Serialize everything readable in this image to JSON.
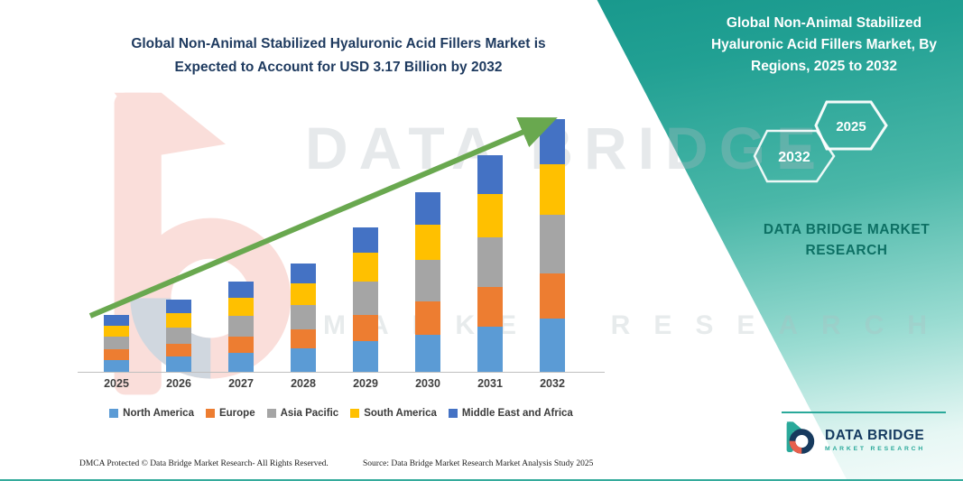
{
  "page": {
    "background": "#ffffff",
    "accent_teal": "#14968a",
    "arrow_green": "#69a84f",
    "navy": "#153a60"
  },
  "chart": {
    "title_line1": "Global Non-Animal Stabilized Hyaluronic Acid Fillers Market is",
    "title_line2": "Expected to Account for USD 3.17 Billion by 2032"
  },
  "chart_data": {
    "type": "bar",
    "stacked": true,
    "title": "Global Non-Animal Stabilized Hyaluronic Acid Fillers Market is Expected to Account for USD 3.17 Billion by 2032",
    "unit": "USD Billion",
    "categories": [
      "2025",
      "2026",
      "2027",
      "2028",
      "2029",
      "2030",
      "2031",
      "2032"
    ],
    "series": [
      {
        "name": "North America",
        "color": "#5B9BD5",
        "values": [
          0.15,
          0.19,
          0.24,
          0.29,
          0.38,
          0.47,
          0.57,
          0.67
        ]
      },
      {
        "name": "Europe",
        "color": "#ED7D31",
        "values": [
          0.13,
          0.16,
          0.2,
          0.24,
          0.33,
          0.41,
          0.49,
          0.57
        ]
      },
      {
        "name": "Asia Pacific",
        "color": "#A5A5A5",
        "values": [
          0.16,
          0.21,
          0.26,
          0.31,
          0.42,
          0.52,
          0.63,
          0.73
        ]
      },
      {
        "name": "South America",
        "color": "#FFC000",
        "values": [
          0.14,
          0.18,
          0.23,
          0.27,
          0.36,
          0.45,
          0.54,
          0.63
        ]
      },
      {
        "name": "Middle East and Africa",
        "color": "#4472C4",
        "values": [
          0.13,
          0.17,
          0.2,
          0.25,
          0.32,
          0.41,
          0.49,
          0.57
        ]
      }
    ],
    "totals": [
      0.71,
      0.91,
      1.13,
      1.36,
      1.81,
      2.26,
      2.72,
      3.17
    ],
    "ylim": [
      0,
      3.5
    ],
    "legend_position": "bottom",
    "annotation": "green upward trend arrow from 2025 bar to 2032 bar"
  },
  "right_panel": {
    "title": "Global Non-Animal Stabilized Hyaluronic Acid Fillers Market, By Regions, 2025 to 2032",
    "hexagons": [
      {
        "label": "2032"
      },
      {
        "label": "2025"
      }
    ],
    "brand_line1": "DATA BRIDGE MARKET",
    "brand_line2": "RESEARCH"
  },
  "watermark": {
    "brand": "DATA BRIDGE",
    "sub": "MARKET RESEARCH"
  },
  "logo": {
    "name": "DATA BRIDGE",
    "tagline": "MARKET RESEARCH"
  },
  "footer": {
    "dmca": "DMCA Protected © Data Bridge Market Research-  All Rights Reserved.",
    "source": "Source: Data Bridge Market Research  Market Analysis Study 2025"
  },
  "icons": {
    "logo_icon": "dbmr-b-logo-icon",
    "watermark_logo_icon": "dbmr-b-watermark-icon",
    "trend_icon": "upward-trend-arrow-icon",
    "hexagon_icon": "hexagon-badge-icon"
  }
}
